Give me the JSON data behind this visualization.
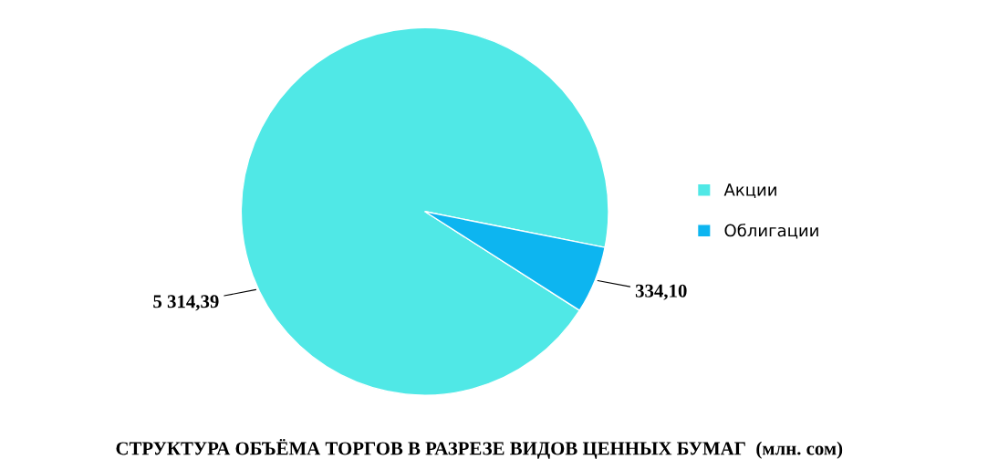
{
  "chart_data": {
    "type": "pie",
    "title": "СТРУКТУРА ОБЪЁМА ТОРГОВ В РАЗРЕЗЕ ВИДОВ ЦЕННЫХ БУМАГ  (млн. сом)",
    "categories": [
      "Акции",
      "Облигации"
    ],
    "values": [
      5314.39,
      334.1
    ],
    "value_labels": [
      "5 314,39",
      "334,10"
    ],
    "colors": [
      "#50e8e6",
      "#0db5f0"
    ],
    "legend": "right"
  }
}
